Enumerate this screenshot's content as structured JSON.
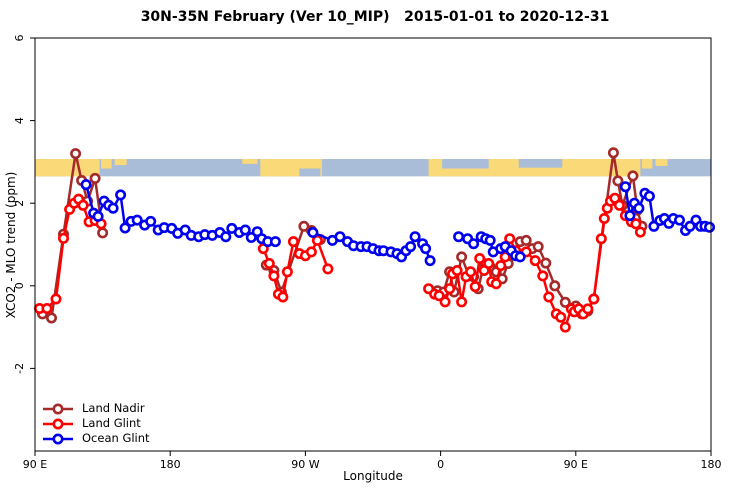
{
  "chart_data": {
    "type": "scatter",
    "title": "30N-35N February (Ver 10_MIP)   2015-01-01 to 2020-12-31",
    "xlabel": "Longitude",
    "ylabel": "XCO2 - MLO trend (ppm)",
    "xlim": [
      90,
      540
    ],
    "ylim": [
      -4,
      6
    ],
    "grid": "off",
    "legend_position": "bottom-left-inside",
    "x_ticks": [
      {
        "value": 90,
        "label": "90 E"
      },
      {
        "value": 180,
        "label": "180"
      },
      {
        "value": 270,
        "label": "90 W"
      },
      {
        "value": 360,
        "label": "0"
      },
      {
        "value": 450,
        "label": "90 E"
      },
      {
        "value": 540,
        "label": "180"
      }
    ],
    "y_ticks": [
      {
        "value": -2,
        "label": "-2"
      },
      {
        "value": 0,
        "label": "0"
      },
      {
        "value": 2,
        "label": "2"
      },
      {
        "value": 4,
        "label": "4"
      },
      {
        "value": 6,
        "label": "6"
      }
    ],
    "map_band": {
      "description": "30N-35N world-map strip drawn across plot at ~2.65-3.07 ppm",
      "value_range": [
        2.65,
        3.07
      ],
      "ocean_color": "#A9BDD9",
      "land_color": "#F9D978",
      "land_rects": [
        {
          "lon0": 90,
          "lon1": 133,
          "top": 0,
          "h": 1.0
        },
        {
          "lon0": 134,
          "lon1": 141,
          "top": 0,
          "h": 0.55
        },
        {
          "lon0": 143,
          "lon1": 151,
          "top": 0,
          "h": 0.35
        },
        {
          "lon0": 228,
          "lon1": 238,
          "top": 0,
          "h": 0.28
        },
        {
          "lon0": 240,
          "lon1": 281,
          "top": 0,
          "h": 1.0
        },
        {
          "lon0": 352,
          "lon1": 493,
          "top": 0,
          "h": 1.0
        },
        {
          "lon0": 494,
          "lon1": 501,
          "top": 0,
          "h": 0.55
        },
        {
          "lon0": 503,
          "lon1": 511,
          "top": 0,
          "h": 0.4
        }
      ],
      "ocean_patches": [
        {
          "lon0": 266,
          "lon1": 280,
          "top": 0.55,
          "h": 0.45
        },
        {
          "lon0": 361,
          "lon1": 392,
          "top": 0.0,
          "h": 0.55
        },
        {
          "lon0": 412,
          "lon1": 441,
          "top": 0.0,
          "h": 0.5
        }
      ]
    },
    "series": [
      {
        "name": "Land Nadir",
        "color": "#A52A2A",
        "groups": [
          [
            [
              95,
              -0.68
            ],
            [
              101,
              -0.78
            ],
            [
              109,
              1.25
            ],
            [
              117,
              3.2
            ],
            [
              121,
              2.55
            ],
            [
              125,
              2.05
            ],
            [
              130,
              2.6
            ],
            [
              135,
              1.28
            ]
          ],
          [
            [
              244,
              0.5
            ],
            [
              249,
              0.37
            ],
            [
              254,
              -0.15
            ],
            [
              269,
              1.44
            ],
            [
              274,
              1.34
            ],
            [
              280,
              1.12
            ]
          ],
          [
            [
              358,
              -0.12
            ],
            [
              362,
              -0.15
            ],
            [
              366,
              0.34
            ],
            [
              369,
              -0.15
            ],
            [
              374,
              0.7
            ],
            [
              379,
              0.24
            ],
            [
              382,
              0.22
            ],
            [
              385,
              -0.07
            ],
            [
              389,
              0.54
            ],
            [
              393,
              0.46
            ],
            [
              397,
              0.34
            ],
            [
              401,
              0.17
            ],
            [
              405,
              0.54
            ],
            [
              409,
              0.82
            ],
            [
              413,
              1.07
            ],
            [
              417,
              1.1
            ],
            [
              421,
              0.9
            ],
            [
              425,
              0.95
            ],
            [
              430,
              0.55
            ],
            [
              436,
              0.0
            ],
            [
              443,
              -0.4
            ],
            [
              450,
              -0.49
            ],
            [
              454,
              -0.68
            ],
            [
              458,
              -0.61
            ],
            [
              462,
              -0.32
            ],
            [
              475,
              3.22
            ],
            [
              478,
              2.54
            ],
            [
              481,
              1.95
            ],
            [
              488,
              2.66
            ],
            [
              491,
              1.83
            ],
            [
              494,
              1.44
            ]
          ]
        ]
      },
      {
        "name": "Land Glint",
        "color": "#FF0000",
        "groups": [
          [
            [
              93,
              -0.55
            ],
            [
              98,
              -0.55
            ],
            [
              104,
              -0.32
            ],
            [
              109,
              1.15
            ],
            [
              113,
              1.85
            ],
            [
              116,
              2.0
            ],
            [
              119,
              2.1
            ],
            [
              122,
              1.95
            ],
            [
              126,
              1.55
            ],
            [
              130,
              1.58
            ],
            [
              134,
              1.5
            ]
          ],
          [
            [
              242,
              0.9
            ],
            [
              246,
              0.54
            ],
            [
              249,
              0.24
            ],
            [
              252,
              -0.2
            ],
            [
              255,
              -0.27
            ],
            [
              258,
              0.34
            ],
            [
              262,
              1.07
            ],
            [
              266,
              0.78
            ],
            [
              270,
              0.73
            ],
            [
              274,
              0.82
            ],
            [
              278,
              1.1
            ],
            [
              285,
              0.41
            ]
          ],
          [
            [
              352,
              -0.07
            ],
            [
              356,
              -0.2
            ],
            [
              359,
              -0.24
            ],
            [
              363,
              -0.39
            ],
            [
              366,
              -0.07
            ],
            [
              368,
              0.29
            ],
            [
              371,
              0.37
            ],
            [
              374,
              -0.39
            ],
            [
              377,
              0.22
            ],
            [
              380,
              0.34
            ],
            [
              383,
              -0.02
            ],
            [
              386,
              0.66
            ],
            [
              389,
              0.37
            ],
            [
              392,
              0.54
            ],
            [
              394,
              0.1
            ],
            [
              397,
              0.05
            ],
            [
              400,
              0.49
            ],
            [
              403,
              0.7
            ],
            [
              406,
              1.14
            ],
            [
              410,
              0.85
            ],
            [
              417,
              0.82
            ],
            [
              423,
              0.61
            ],
            [
              428,
              0.24
            ],
            [
              432,
              -0.27
            ],
            [
              437,
              -0.68
            ],
            [
              440,
              -0.76
            ],
            [
              443,
              -1.0
            ],
            [
              447,
              -0.56
            ],
            [
              449,
              -0.63
            ],
            [
              452,
              -0.56
            ],
            [
              455,
              -0.68
            ],
            [
              458,
              -0.56
            ],
            [
              462,
              -0.32
            ],
            [
              467,
              1.14
            ],
            [
              469,
              1.63
            ],
            [
              471,
              1.88
            ],
            [
              473,
              2.05
            ],
            [
              476,
              2.12
            ],
            [
              479,
              1.95
            ],
            [
              483,
              1.7
            ],
            [
              487,
              1.55
            ],
            [
              490,
              1.5
            ],
            [
              493,
              1.3
            ]
          ]
        ]
      },
      {
        "name": "Ocean Glint",
        "color": "#0000EE",
        "groups": [
          [
            [
              124,
              2.45
            ],
            [
              129,
              1.76
            ],
            [
              132,
              1.68
            ],
            [
              136,
              2.05
            ],
            [
              139,
              1.95
            ],
            [
              142,
              1.88
            ],
            [
              147,
              2.2
            ],
            [
              150,
              1.4
            ],
            [
              154,
              1.56
            ],
            [
              158,
              1.59
            ],
            [
              163,
              1.47
            ],
            [
              167,
              1.56
            ],
            [
              172,
              1.35
            ],
            [
              176,
              1.41
            ],
            [
              181,
              1.39
            ],
            [
              185,
              1.27
            ],
            [
              190,
              1.35
            ],
            [
              194,
              1.22
            ],
            [
              199,
              1.19
            ],
            [
              203,
              1.24
            ],
            [
              208,
              1.22
            ],
            [
              213,
              1.29
            ],
            [
              217,
              1.19
            ],
            [
              221,
              1.39
            ],
            [
              226,
              1.29
            ],
            [
              230,
              1.35
            ],
            [
              234,
              1.17
            ],
            [
              238,
              1.31
            ],
            [
              241,
              1.14
            ],
            [
              245,
              1.07
            ],
            [
              250,
              1.07
            ]
          ],
          [
            [
              275,
              1.29
            ],
            [
              288,
              1.1
            ],
            [
              293,
              1.19
            ],
            [
              298,
              1.07
            ],
            [
              302,
              0.97
            ],
            [
              307,
              0.95
            ],
            [
              311,
              0.95
            ],
            [
              315,
              0.9
            ],
            [
              319,
              0.85
            ],
            [
              322,
              0.85
            ],
            [
              327,
              0.82
            ],
            [
              331,
              0.78
            ],
            [
              334,
              0.7
            ],
            [
              337,
              0.85
            ],
            [
              340,
              0.95
            ],
            [
              343,
              1.19
            ],
            [
              348,
              1.02
            ],
            [
              350,
              0.9
            ],
            [
              353,
              0.61
            ]
          ],
          [
            [
              372,
              1.19
            ],
            [
              378,
              1.14
            ],
            [
              382,
              1.02
            ],
            [
              387,
              1.19
            ],
            [
              390,
              1.14
            ],
            [
              393,
              1.1
            ],
            [
              395,
              0.82
            ],
            [
              400,
              0.9
            ],
            [
              403,
              0.95
            ],
            [
              407,
              0.85
            ],
            [
              410,
              0.73
            ],
            [
              413,
              0.7
            ]
          ],
          [
            [
              483,
              2.4
            ],
            [
              486,
              1.7
            ],
            [
              489,
              2.0
            ],
            [
              492,
              1.88
            ],
            [
              496,
              2.24
            ],
            [
              499,
              2.17
            ],
            [
              502,
              1.44
            ],
            [
              506,
              1.58
            ],
            [
              509,
              1.63
            ],
            [
              512,
              1.51
            ],
            [
              515,
              1.63
            ],
            [
              519,
              1.59
            ],
            [
              523,
              1.34
            ],
            [
              526,
              1.44
            ],
            [
              530,
              1.59
            ],
            [
              533,
              1.44
            ],
            [
              536,
              1.44
            ],
            [
              539,
              1.42
            ]
          ]
        ]
      }
    ]
  }
}
